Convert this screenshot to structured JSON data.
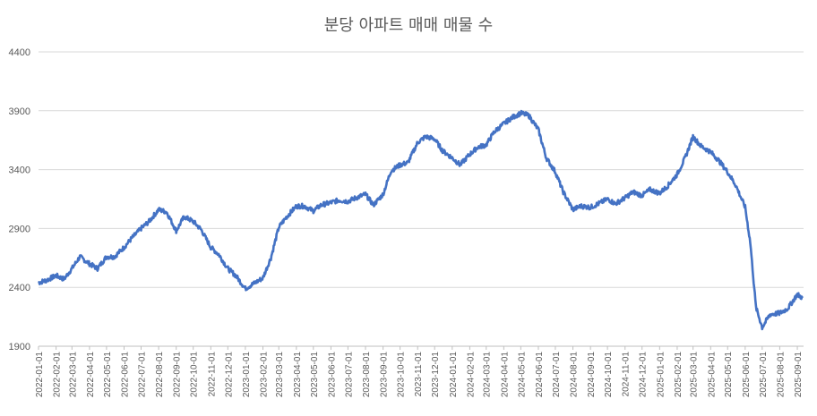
{
  "chart_data": {
    "type": "line",
    "title": "분당 아파트 매매 매물 수",
    "xlabel": "",
    "ylabel": "",
    "ylim": [
      1900,
      4400
    ],
    "y_ticks": [
      "1900",
      "2400",
      "2900",
      "3400",
      "3900",
      "4400"
    ],
    "grid": true,
    "legend": "none",
    "colors": {
      "series": "#4472c4",
      "grid": "#d9d9d9",
      "text": "#595959"
    },
    "x_ticks": [
      "2022-01-01",
      "2022-02-01",
      "2022-03-01",
      "2022-04-01",
      "2022-05-01",
      "2022-06-01",
      "2022-07-01",
      "2022-08-01",
      "2022-09-01",
      "2022-10-01",
      "2022-11-01",
      "2022-12-01",
      "2023-01-01",
      "2023-02-01",
      "2023-03-01",
      "2023-04-01",
      "2023-05-01",
      "2023-06-01",
      "2023-07-01",
      "2023-08-01",
      "2023-09-01",
      "2023-10-01",
      "2023-11-01",
      "2023-12-01",
      "2024-01-01",
      "2024-02-01",
      "2024-03-01",
      "2024-04-01",
      "2024-05-01",
      "2024-06-01",
      "2024-07-01",
      "2024-08-01",
      "2024-09-01",
      "2024-10-01",
      "2024-11-01",
      "2024-12-01",
      "2025-01-01",
      "2025-02-01",
      "2025-03-01",
      "2025-04-01",
      "2025-05-01",
      "2025-06-01",
      "2025-07-01",
      "2025-08-01",
      "2025-09-01"
    ],
    "series": [
      {
        "x": [
          "2022-01-01",
          "2022-01-15",
          "2022-02-01",
          "2022-02-15",
          "2022-03-01",
          "2022-03-15",
          "2022-04-01",
          "2022-04-15",
          "2022-05-01",
          "2022-05-15",
          "2022-06-01",
          "2022-06-15",
          "2022-07-01",
          "2022-07-15",
          "2022-08-01",
          "2022-08-15",
          "2022-09-01",
          "2022-09-15",
          "2022-10-01",
          "2022-10-15",
          "2022-11-01",
          "2022-11-15",
          "2022-12-01",
          "2022-12-15",
          "2023-01-01",
          "2023-01-15",
          "2023-02-01",
          "2023-02-15",
          "2023-03-01",
          "2023-03-15",
          "2023-04-01",
          "2023-04-15",
          "2023-05-01",
          "2023-05-15",
          "2023-06-01",
          "2023-06-15",
          "2023-07-01",
          "2023-07-15",
          "2023-08-01",
          "2023-08-15",
          "2023-09-01",
          "2023-09-15",
          "2023-10-01",
          "2023-10-15",
          "2023-11-01",
          "2023-11-15",
          "2023-12-01",
          "2023-12-15",
          "2024-01-01",
          "2024-01-15",
          "2024-02-01",
          "2024-02-15",
          "2024-03-01",
          "2024-03-15",
          "2024-04-01",
          "2024-04-15",
          "2024-05-01",
          "2024-05-15",
          "2024-06-01",
          "2024-06-15",
          "2024-07-01",
          "2024-07-15",
          "2024-08-01",
          "2024-08-15",
          "2024-09-01",
          "2024-09-15",
          "2024-10-01",
          "2024-10-15",
          "2024-11-01",
          "2024-11-15",
          "2024-12-01",
          "2024-12-15",
          "2025-01-01",
          "2025-01-15",
          "2025-02-01",
          "2025-02-15",
          "2025-03-01",
          "2025-03-15",
          "2025-04-01",
          "2025-04-15",
          "2025-05-01",
          "2025-05-15",
          "2025-06-01",
          "2025-06-10",
          "2025-06-20",
          "2025-07-01",
          "2025-07-15",
          "2025-08-01",
          "2025-08-15",
          "2025-09-01",
          "2025-09-10"
        ],
        "values": [
          2440,
          2460,
          2500,
          2470,
          2560,
          2660,
          2600,
          2560,
          2660,
          2660,
          2740,
          2820,
          2900,
          2960,
          3060,
          3040,
          2880,
          3000,
          2960,
          2890,
          2740,
          2680,
          2560,
          2500,
          2390,
          2430,
          2480,
          2650,
          2910,
          3000,
          3090,
          3090,
          3050,
          3100,
          3120,
          3140,
          3130,
          3160,
          3190,
          3100,
          3190,
          3390,
          3440,
          3460,
          3630,
          3680,
          3660,
          3560,
          3500,
          3440,
          3530,
          3590,
          3610,
          3720,
          3790,
          3840,
          3880,
          3860,
          3740,
          3500,
          3380,
          3210,
          3060,
          3090,
          3080,
          3110,
          3150,
          3110,
          3160,
          3210,
          3180,
          3230,
          3200,
          3260,
          3360,
          3500,
          3680,
          3600,
          3550,
          3480,
          3380,
          3270,
          3080,
          2780,
          2230,
          2060,
          2170,
          2180,
          2220,
          2340,
          2310
        ]
      }
    ]
  }
}
